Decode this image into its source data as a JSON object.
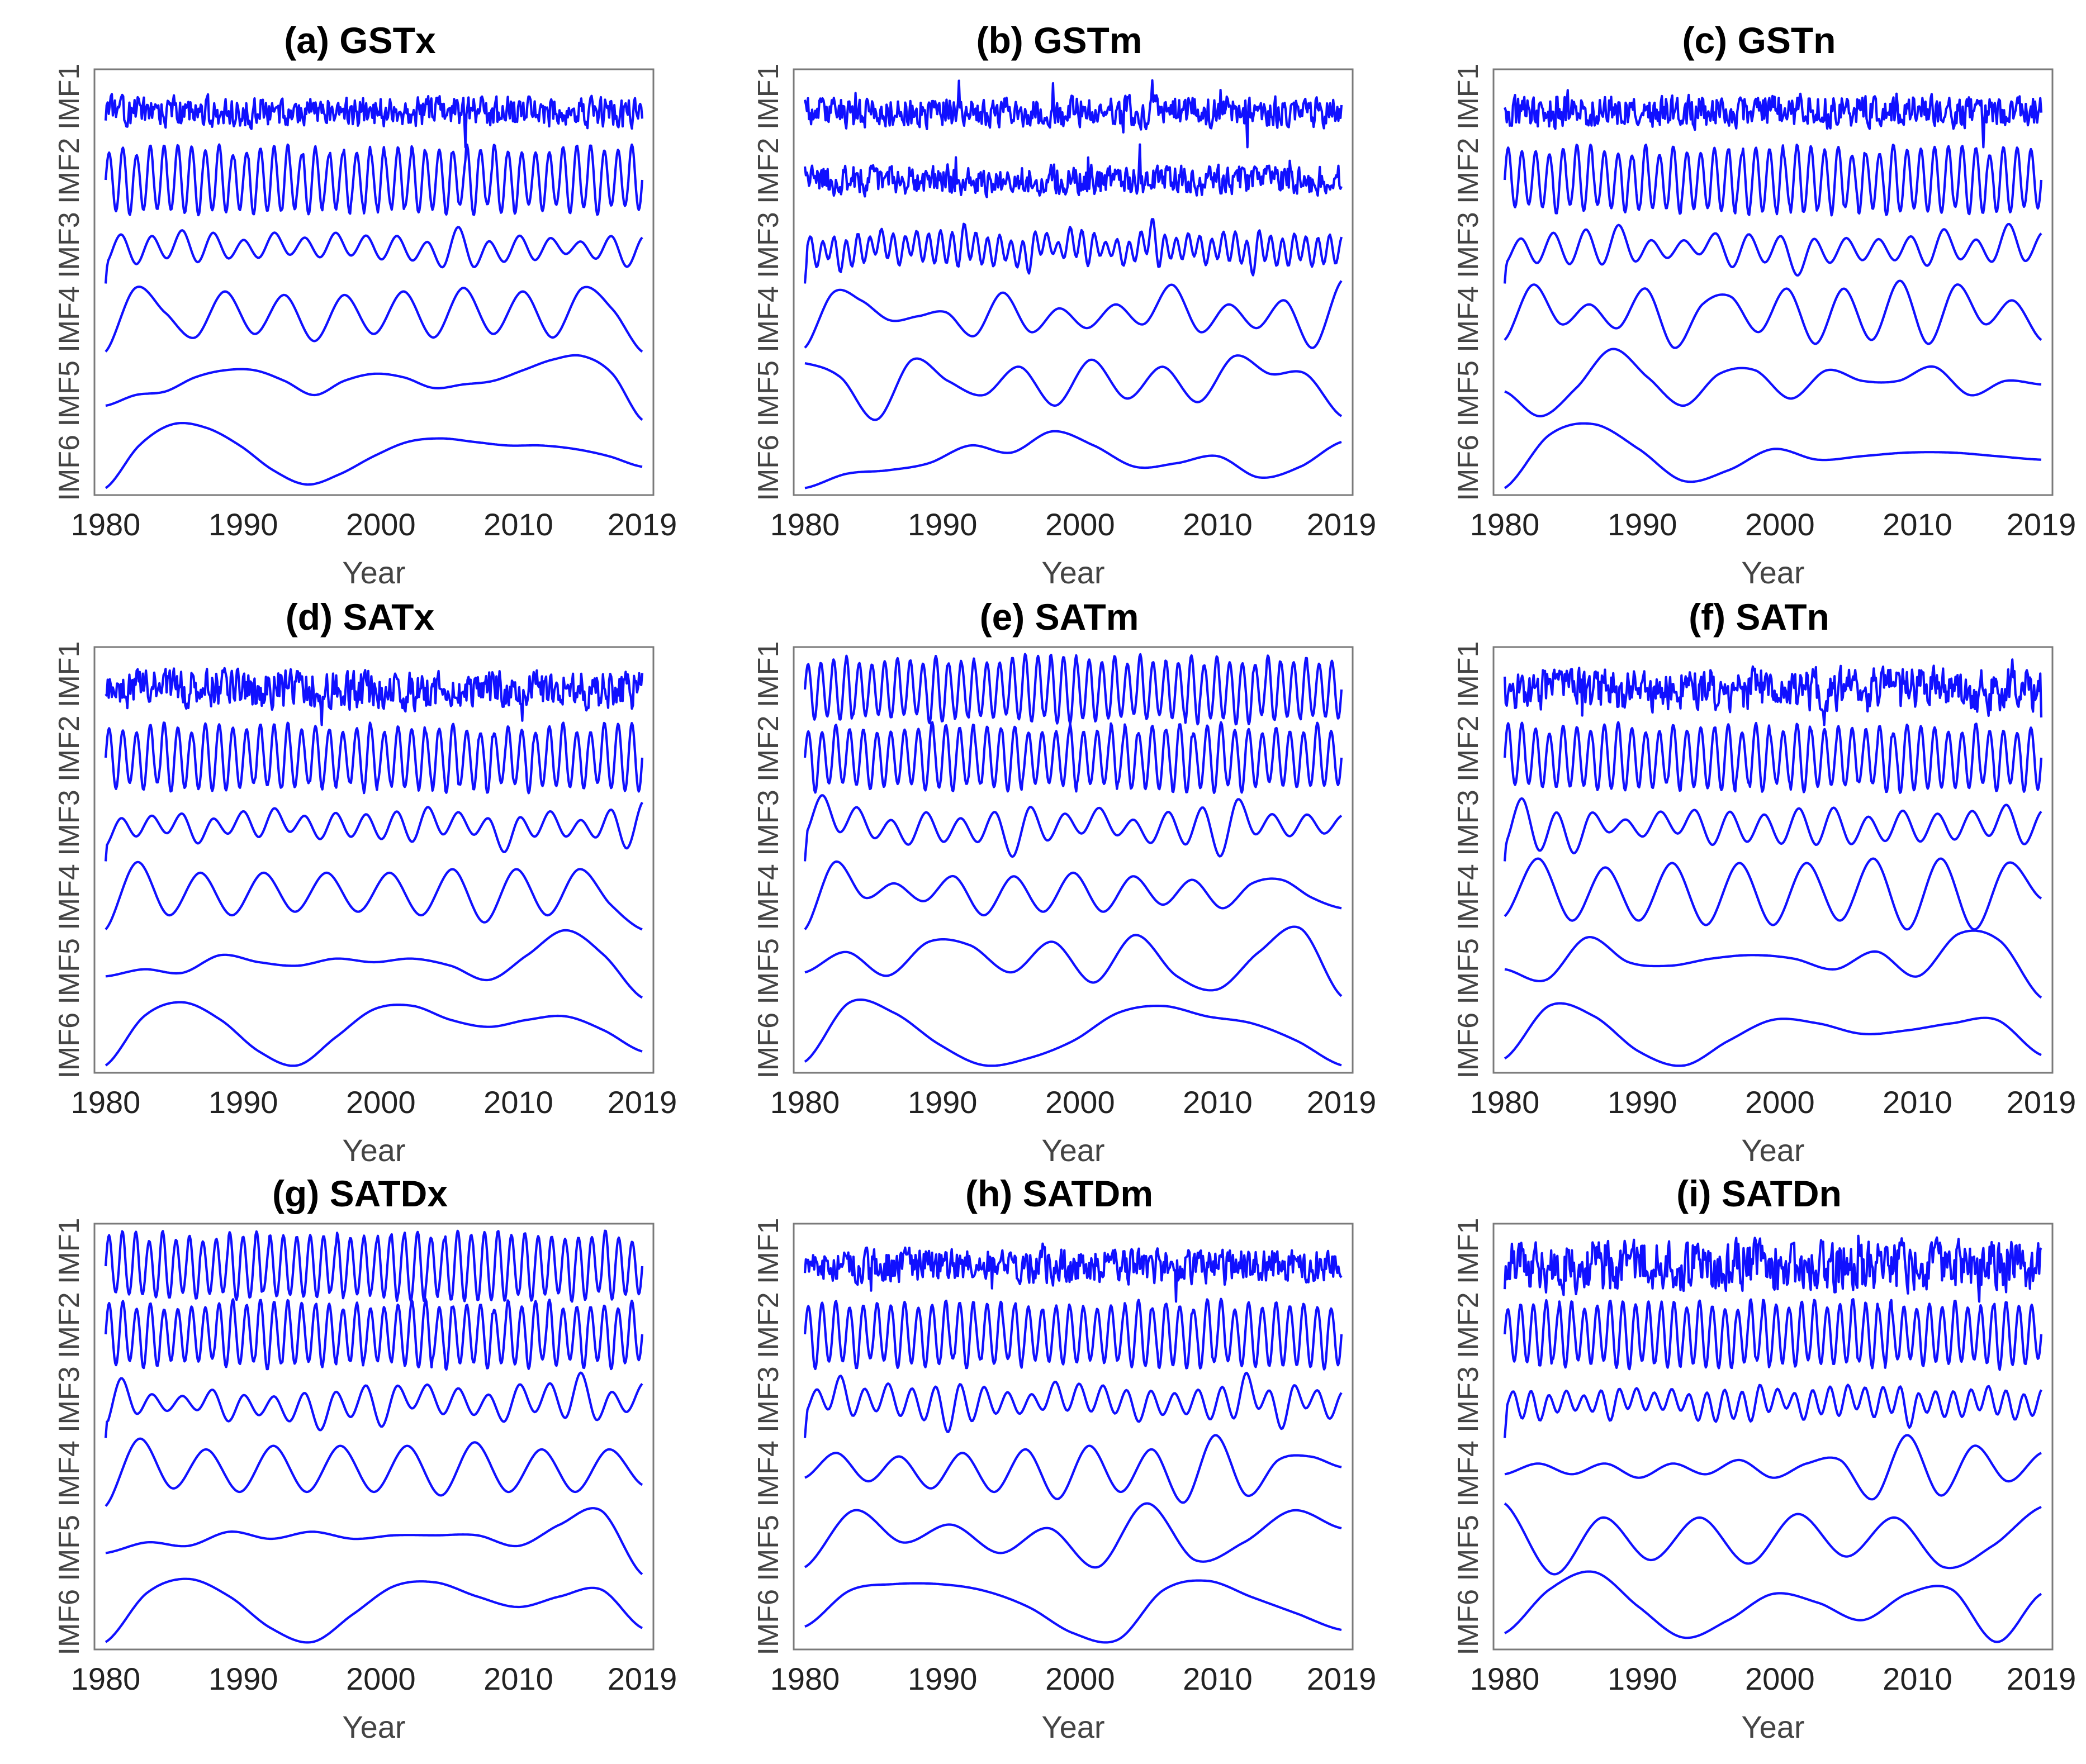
{
  "figure": {
    "line_color": "#1010ff",
    "frame_color": "#7a7a7a",
    "text_color": "#000000"
  },
  "chart_data": [
    {
      "id": "a",
      "type": "line",
      "title": "(a) GSTx",
      "xlabel": "Year",
      "ylabel_stack": [
        "IMF6",
        "IMF5",
        "IMF4",
        "IMF3",
        "IMF2",
        "IMF1"
      ],
      "xticks": [
        1980,
        1990,
        2000,
        2010,
        2019
      ],
      "xlim": [
        1980,
        2019
      ],
      "series": [
        {
          "name": "IMF1",
          "kind": "noise",
          "level": "medium",
          "amp": 0.8,
          "seed": 11
        },
        {
          "name": "IMF2",
          "kind": "annual",
          "amp": 1.0,
          "cycles": 39,
          "seed": 12
        },
        {
          "name": "IMF3",
          "kind": "wavy",
          "amp": 0.6,
          "cycles": 17,
          "seed": 13
        },
        {
          "name": "IMF4",
          "kind": "smooth",
          "values": [
            -1,
            0.8,
            0.1,
            -0.6,
            0.7,
            -0.5,
            0.6,
            -0.7,
            0.6,
            -0.5,
            0.7,
            -0.6,
            0.8,
            -0.5,
            0.7,
            -0.6,
            0.8,
            0.2,
            -1
          ]
        },
        {
          "name": "IMF5",
          "kind": "smooth",
          "values": [
            -0.6,
            -0.3,
            -0.2,
            0.2,
            0.4,
            0.4,
            0.1,
            -0.3,
            0.1,
            0.3,
            0.2,
            -0.1,
            0.0,
            0.1,
            0.4,
            0.7,
            0.8,
            0.3,
            -1
          ]
        },
        {
          "name": "IMF6",
          "kind": "smooth",
          "values": [
            -1,
            0.2,
            0.8,
            0.7,
            0.2,
            -0.5,
            -0.9,
            -0.6,
            -0.1,
            0.3,
            0.4,
            0.3,
            0.2,
            0.2,
            0.1,
            -0.1,
            -0.4
          ]
        }
      ]
    },
    {
      "id": "b",
      "type": "line",
      "title": "(b) GSTm",
      "xlabel": "Year",
      "ylabel_stack": [
        "IMF6",
        "IMF5",
        "IMF4",
        "IMF3",
        "IMF2",
        "IMF1"
      ],
      "xticks": [
        1980,
        1990,
        2000,
        2010,
        2019
      ],
      "xlim": [
        1980,
        2019
      ],
      "series": [
        {
          "name": "IMF1",
          "kind": "noise",
          "level": "high",
          "amp": 1.0,
          "seed": 21
        },
        {
          "name": "IMF2",
          "kind": "noise",
          "level": "medium",
          "amp": 0.8,
          "seed": 22
        },
        {
          "name": "IMF3",
          "kind": "wavy",
          "amp": 0.8,
          "cycles": 45,
          "seed": 23
        },
        {
          "name": "IMF4",
          "kind": "smooth",
          "values": [
            -0.8,
            0.6,
            0.4,
            -0.1,
            0.0,
            0.1,
            -0.5,
            0.6,
            -0.4,
            0.2,
            -0.3,
            0.3,
            -0.2,
            0.8,
            -0.4,
            0.3,
            -0.3,
            0.4,
            -0.8,
            0.9
          ]
        },
        {
          "name": "IMF5",
          "kind": "smooth",
          "values": [
            0.6,
            0.2,
            -1,
            0.7,
            0.1,
            -0.3,
            0.5,
            -0.6,
            0.7,
            -0.4,
            0.5,
            -0.5,
            0.8,
            0.3,
            0.3,
            -0.9
          ]
        },
        {
          "name": "IMF6",
          "kind": "smooth",
          "values": [
            -1,
            -0.6,
            -0.5,
            -0.3,
            0.2,
            0.0,
            0.6,
            0.2,
            -0.4,
            -0.3,
            -0.1,
            -0.7,
            -0.4,
            0.3
          ]
        }
      ]
    },
    {
      "id": "c",
      "type": "line",
      "title": "(c) GSTn",
      "xlabel": "Year",
      "ylabel_stack": [
        "IMF6",
        "IMF5",
        "IMF4",
        "IMF3",
        "IMF2",
        "IMF1"
      ],
      "xticks": [
        1980,
        1990,
        2000,
        2010,
        2019
      ],
      "xlim": [
        1980,
        2019
      ],
      "series": [
        {
          "name": "IMF1",
          "kind": "noise",
          "level": "high",
          "amp": 0.9,
          "seed": 31
        },
        {
          "name": "IMF2",
          "kind": "annual",
          "amp": 1.0,
          "cycles": 39,
          "seed": 32
        },
        {
          "name": "IMF3",
          "kind": "wavy",
          "amp": 0.5,
          "cycles": 16,
          "seed": 33
        },
        {
          "name": "IMF4",
          "kind": "smooth",
          "values": [
            -0.6,
            0.8,
            -0.2,
            0.3,
            -0.3,
            0.7,
            -0.8,
            0.3,
            0.5,
            -0.4,
            0.7,
            -0.7,
            0.7,
            -0.6,
            0.9,
            -0.7,
            0.8,
            -0.2,
            0.4,
            -0.6
          ]
        },
        {
          "name": "IMF5",
          "kind": "smooth",
          "values": [
            -0.2,
            -0.9,
            -0.1,
            1.0,
            0.2,
            -0.6,
            0.3,
            0.4,
            -0.4,
            0.4,
            0.1,
            0.1,
            0.5,
            -0.3,
            0.1,
            0.0
          ]
        },
        {
          "name": "IMF6",
          "kind": "smooth",
          "values": [
            -1,
            0.5,
            0.8,
            0.1,
            -0.8,
            -0.5,
            0.1,
            -0.2,
            -0.1,
            0.0,
            0.0,
            -0.1,
            -0.2
          ]
        }
      ]
    },
    {
      "id": "d",
      "type": "line",
      "title": "(d) SATx",
      "xlabel": "Year",
      "ylabel_stack": [
        "IMF6",
        "IMF5",
        "IMF4",
        "IMF3",
        "IMF2",
        "IMF1"
      ],
      "xticks": [
        1980,
        1990,
        2000,
        2010,
        2019
      ],
      "xlim": [
        1980,
        2019
      ],
      "series": [
        {
          "name": "IMF1",
          "kind": "noise",
          "level": "medium",
          "amp": 0.8,
          "seed": 41
        },
        {
          "name": "IMF2",
          "kind": "annual",
          "amp": 1.0,
          "cycles": 39,
          "seed": 42
        },
        {
          "name": "IMF3",
          "kind": "wavy",
          "amp": 0.6,
          "cycles": 17,
          "seed": 43
        },
        {
          "name": "IMF4",
          "kind": "smooth",
          "values": [
            -1,
            0.9,
            -0.6,
            0.6,
            -0.6,
            0.6,
            -0.5,
            0.6,
            -0.5,
            0.6,
            -0.6,
            0.7,
            -0.8,
            0.7,
            -0.6,
            0.7,
            -0.3,
            -1
          ]
        },
        {
          "name": "IMF5",
          "kind": "smooth",
          "values": [
            -0.4,
            -0.2,
            -0.3,
            0.2,
            0.0,
            -0.1,
            0.1,
            0.0,
            0.1,
            -0.1,
            -0.5,
            0.2,
            0.9,
            0.2,
            -1
          ]
        },
        {
          "name": "IMF6",
          "kind": "smooth",
          "values": [
            -1,
            0.4,
            0.8,
            0.3,
            -0.6,
            -1,
            -0.2,
            0.6,
            0.7,
            0.3,
            0.1,
            0.3,
            0.4,
            0.0,
            -0.6
          ]
        }
      ]
    },
    {
      "id": "e",
      "type": "line",
      "title": "(e) SATm",
      "xlabel": "Year",
      "ylabel_stack": [
        "IMF6",
        "IMF5",
        "IMF4",
        "IMF3",
        "IMF2",
        "IMF1"
      ],
      "xticks": [
        1980,
        1990,
        2000,
        2010,
        2019
      ],
      "xlim": [
        1980,
        2019
      ],
      "series": [
        {
          "name": "IMF1",
          "kind": "annual",
          "amp": 0.9,
          "cycles": 42,
          "seed": 51
        },
        {
          "name": "IMF2",
          "kind": "annual",
          "amp": 1.0,
          "cycles": 39,
          "seed": 52
        },
        {
          "name": "IMF3",
          "kind": "wavy",
          "amp": 0.5,
          "cycles": 15,
          "seed": 53
        },
        {
          "name": "IMF4",
          "kind": "smooth",
          "values": [
            -1,
            0.9,
            -0.1,
            0.3,
            -0.2,
            0.5,
            -0.6,
            0.5,
            -0.5,
            0.6,
            -0.5,
            0.5,
            -0.3,
            0.4,
            -0.4,
            0.3,
            0.4,
            -0.1,
            -0.4
          ]
        },
        {
          "name": "IMF5",
          "kind": "smooth",
          "values": [
            -0.3,
            0.3,
            -0.4,
            0.6,
            0.5,
            -0.3,
            0.6,
            -0.6,
            0.8,
            -0.4,
            -0.8,
            0.3,
            1.0,
            -1
          ]
        },
        {
          "name": "IMF6",
          "kind": "smooth",
          "values": [
            -0.9,
            0.8,
            0.5,
            -0.4,
            -1,
            -0.8,
            -0.3,
            0.5,
            0.7,
            0.4,
            0.2,
            -0.3,
            -1
          ]
        }
      ]
    },
    {
      "id": "f",
      "type": "line",
      "title": "(f) SATn",
      "xlabel": "Year",
      "ylabel_stack": [
        "IMF6",
        "IMF5",
        "IMF4",
        "IMF3",
        "IMF2",
        "IMF1"
      ],
      "xticks": [
        1980,
        1990,
        2000,
        2010,
        2019
      ],
      "xlim": [
        1980,
        2019
      ],
      "series": [
        {
          "name": "IMF1",
          "kind": "noise",
          "level": "low",
          "amp": 0.7,
          "seed": 61
        },
        {
          "name": "IMF2",
          "kind": "annual",
          "amp": 1.0,
          "cycles": 39,
          "seed": 62
        },
        {
          "name": "IMF3",
          "kind": "wavy",
          "amp": 0.5,
          "cycles": 15,
          "seed": 63
        },
        {
          "name": "IMF4",
          "kind": "smooth",
          "values": [
            -0.5,
            0.8,
            -0.6,
            0.6,
            -0.6,
            0.7,
            -0.7,
            0.7,
            -0.7,
            0.7,
            -0.6,
            0.8,
            -0.8,
            0.8,
            -0.8,
            0.7,
            -0.1
          ]
        },
        {
          "name": "IMF5",
          "kind": "smooth",
          "values": [
            -0.2,
            -0.5,
            0.7,
            0.0,
            -0.1,
            0.1,
            0.2,
            0.1,
            -0.2,
            0.3,
            -0.4,
            0.8,
            0.6,
            -1
          ]
        },
        {
          "name": "IMF6",
          "kind": "smooth",
          "values": [
            -0.8,
            0.7,
            0.4,
            -0.6,
            -1,
            -0.3,
            0.3,
            0.2,
            -0.1,
            0.0,
            0.2,
            0.3,
            -0.7
          ]
        }
      ]
    },
    {
      "id": "g",
      "type": "line",
      "title": "(g) SATDx",
      "xlabel": "Year",
      "ylabel_stack": [
        "IMF6",
        "IMF5",
        "IMF4",
        "IMF3",
        "IMF2",
        "IMF1"
      ],
      "xticks": [
        1980,
        1990,
        2000,
        2010,
        2019
      ],
      "xlim": [
        1980,
        2019
      ],
      "series": [
        {
          "name": "IMF1",
          "kind": "annual",
          "amp": 0.9,
          "cycles": 40,
          "seed": 71
        },
        {
          "name": "IMF2",
          "kind": "annual",
          "amp": 1.0,
          "cycles": 39,
          "seed": 72
        },
        {
          "name": "IMF3",
          "kind": "wavy",
          "amp": 0.5,
          "cycles": 17,
          "seed": 73
        },
        {
          "name": "IMF4",
          "kind": "smooth",
          "values": [
            -1,
            0.9,
            -0.5,
            0.6,
            -0.6,
            0.7,
            -0.6,
            0.7,
            -0.6,
            0.7,
            -0.7,
            0.8,
            -0.6,
            0.6,
            -0.6,
            0.6,
            -0.4
          ]
        },
        {
          "name": "IMF5",
          "kind": "smooth",
          "values": [
            -0.4,
            -0.1,
            -0.2,
            0.2,
            0.0,
            0.2,
            0.0,
            0.1,
            0.1,
            0.1,
            -0.2,
            0.4,
            0.8,
            -1
          ]
        },
        {
          "name": "IMF6",
          "kind": "smooth",
          "values": [
            -1,
            0.4,
            0.8,
            0.3,
            -0.6,
            -1,
            -0.2,
            0.6,
            0.7,
            0.3,
            0.0,
            0.3,
            0.5,
            -0.6
          ]
        }
      ]
    },
    {
      "id": "h",
      "type": "line",
      "title": "(h) SATDm",
      "xlabel": "Year",
      "ylabel_stack": [
        "IMF6",
        "IMF5",
        "IMF4",
        "IMF3",
        "IMF2",
        "IMF1"
      ],
      "xticks": [
        1980,
        1990,
        2000,
        2010,
        2019
      ],
      "xlim": [
        1980,
        2019
      ],
      "series": [
        {
          "name": "IMF1",
          "kind": "noise",
          "level": "high",
          "amp": 0.7,
          "seed": 81
        },
        {
          "name": "IMF2",
          "kind": "annual",
          "amp": 1.0,
          "cycles": 39,
          "seed": 82
        },
        {
          "name": "IMF3",
          "kind": "wavy",
          "amp": 0.5,
          "cycles": 22,
          "seed": 83
        },
        {
          "name": "IMF4",
          "kind": "smooth",
          "values": [
            -0.2,
            0.5,
            -0.3,
            0.4,
            -0.5,
            0.5,
            -0.6,
            0.6,
            -0.8,
            0.7,
            -0.6,
            0.6,
            -0.9,
            1.0,
            -0.7,
            0.3,
            0.4,
            0.1
          ]
        },
        {
          "name": "IMF5",
          "kind": "smooth",
          "values": [
            -0.8,
            0.8,
            -0.1,
            0.4,
            -0.4,
            0.3,
            -0.8,
            1.0,
            -0.6,
            -0.1,
            0.8,
            0.3
          ]
        },
        {
          "name": "IMF6",
          "kind": "smooth",
          "values": [
            -0.6,
            0.5,
            0.7,
            0.7,
            0.5,
            0.0,
            -0.8,
            -1,
            0.5,
            0.8,
            0.3,
            -0.2,
            -0.7
          ]
        }
      ]
    },
    {
      "id": "i",
      "type": "line",
      "title": "(i) SATDn",
      "xlabel": "Year",
      "ylabel_stack": [
        "IMF6",
        "IMF5",
        "IMF4",
        "IMF3",
        "IMF2",
        "IMF1"
      ],
      "xticks": [
        1980,
        1990,
        2000,
        2010,
        2019
      ],
      "xlim": [
        1980,
        2019
      ],
      "series": [
        {
          "name": "IMF1",
          "kind": "noise",
          "level": "high",
          "amp": 0.9,
          "seed": 91
        },
        {
          "name": "IMF2",
          "kind": "annual",
          "amp": 0.9,
          "cycles": 42,
          "seed": 92
        },
        {
          "name": "IMF3",
          "kind": "wavy",
          "amp": 0.5,
          "cycles": 30,
          "seed": 93
        },
        {
          "name": "IMF4",
          "kind": "smooth",
          "values": [
            -0.1,
            0.2,
            -0.1,
            0.2,
            -0.2,
            0.2,
            -0.1,
            0.3,
            -0.2,
            0.2,
            0.3,
            -0.8,
            1.0,
            -0.7,
            0.7,
            -0.3,
            0.5
          ]
        },
        {
          "name": "IMF5",
          "kind": "smooth",
          "values": [
            1.0,
            -1,
            0.6,
            -0.6,
            0.6,
            -0.7,
            0.7,
            -0.5,
            0.6,
            -0.8,
            -0.2,
            0.9
          ]
        },
        {
          "name": "IMF6",
          "kind": "smooth",
          "values": [
            -0.6,
            0.4,
            0.8,
            0.0,
            -0.7,
            -0.3,
            0.3,
            0.1,
            -0.3,
            0.3,
            0.4,
            -0.8,
            0.3
          ]
        }
      ]
    }
  ]
}
